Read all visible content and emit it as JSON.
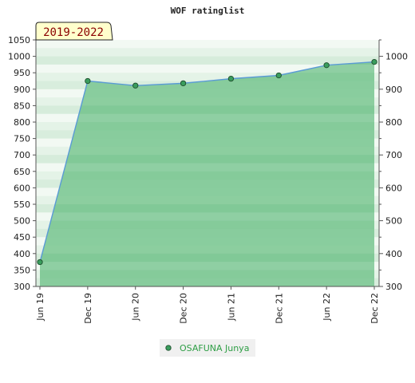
{
  "chart_data": {
    "type": "area",
    "title": "WOF ratinglist",
    "period_label": "2019-2022",
    "x": [
      "Jun 19",
      "Dec 19",
      "Jun 20",
      "Dec 20",
      "Jun 21",
      "Dec 21",
      "Jun 22",
      "Dec 22"
    ],
    "series": [
      {
        "name": "OSAFUNA Junya",
        "values": [
          374,
          925,
          911,
          918,
          932,
          942,
          973,
          983
        ]
      }
    ],
    "ylim": [
      300,
      1050
    ],
    "left_ticks": [
      "300",
      "350",
      "400",
      "450",
      "500",
      "550",
      "600",
      "650",
      "700",
      "750",
      "800",
      "850",
      "900",
      "950",
      "1000",
      "1050"
    ],
    "right_ticks": [
      "300",
      "400",
      "500",
      "600",
      "700",
      "800",
      "900",
      "1000"
    ],
    "grid": false,
    "legend_position": "bottom-center",
    "colors": {
      "area": "#5fbb7d",
      "line": "#5a9bd5",
      "marker": "#3a9d5d",
      "legend_text": "#2e9e45",
      "period_bg": "#ffffcc"
    }
  }
}
